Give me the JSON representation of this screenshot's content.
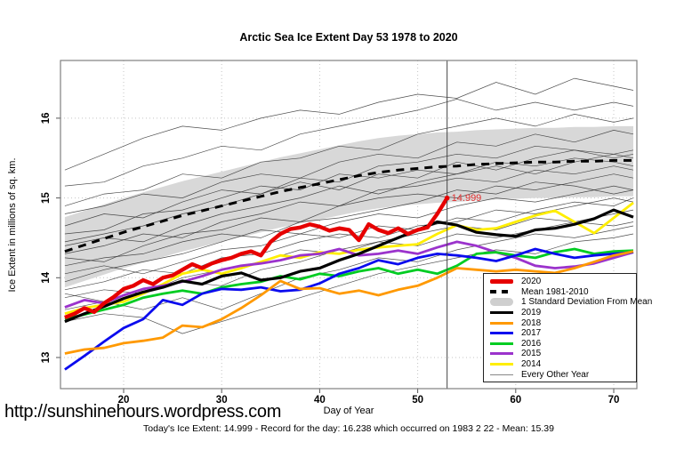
{
  "footer": {
    "url": "http://sunshinehours.wordpress.com",
    "summary": "Today's Ice Extent: 14.999  - Record for the day: 16.238 which occurred on 1983 2 22  - Mean: 15.39"
  },
  "legend": {
    "items": [
      {
        "label": "2020",
        "swatch": "thick",
        "color": "#e60000"
      },
      {
        "label": "Mean 1981-2010",
        "swatch": "dash",
        "color": "#000000"
      },
      {
        "label": "1 Standard Deviation From Mean",
        "swatch": "band",
        "color": "#cfcfcf"
      },
      {
        "label": "2019",
        "swatch": "line",
        "color": "#000000"
      },
      {
        "label": "2018",
        "swatch": "line",
        "color": "#ff9900"
      },
      {
        "label": "2017",
        "swatch": "line",
        "color": "#0b0bee"
      },
      {
        "label": "2016",
        "swatch": "line",
        "color": "#00cc22"
      },
      {
        "label": "2015",
        "swatch": "line",
        "color": "#9b33cc"
      },
      {
        "label": "2014",
        "swatch": "line",
        "color": "#ffee00"
      },
      {
        "label": "Every Other Year",
        "swatch": "thin",
        "color": "#888888"
      }
    ]
  },
  "chart_data": {
    "type": "line",
    "title": "Arctic Sea Ice Extent Day 53 1978 to 2020",
    "xlabel": "Day of Year",
    "ylabel": "Ice Extent in millions of sq. km.",
    "xlim": [
      13.5,
      72.4
    ],
    "ylim": [
      12.6,
      16.72
    ],
    "xticks": [
      20,
      30,
      40,
      50,
      60,
      70
    ],
    "yticks": [
      13,
      14,
      15,
      16
    ],
    "grid": true,
    "legend_position": "bottom-right",
    "today_line_day": 53,
    "annotation": {
      "text": "14.999",
      "day": 53,
      "value": 14.999,
      "color": "#e03030"
    },
    "band": {
      "name": "1 Standard Deviation From Mean",
      "color": "#d8d8d8",
      "day_start": 14,
      "day_step": 2,
      "upper": [
        14.76,
        14.84,
        14.92,
        15.0,
        15.07,
        15.14,
        15.21,
        15.27,
        15.33,
        15.39,
        15.45,
        15.51,
        15.56,
        15.61,
        15.66,
        15.71,
        15.75,
        15.78,
        15.8,
        15.82,
        15.83,
        15.85,
        15.86,
        15.87,
        15.88,
        15.88,
        15.89,
        15.89,
        15.9,
        15.9
      ],
      "lower": [
        13.88,
        13.96,
        14.04,
        14.12,
        14.19,
        14.26,
        14.33,
        14.39,
        14.45,
        14.51,
        14.57,
        14.63,
        14.68,
        14.73,
        14.78,
        14.83,
        14.87,
        14.9,
        14.92,
        14.94,
        14.95,
        14.97,
        14.98,
        14.99,
        15.0,
        15.0,
        15.01,
        15.01,
        15.02,
        15.02
      ]
    },
    "mean": {
      "name": "Mean 1981-2010",
      "color": "#000000",
      "day_start": 14,
      "day_step": 2,
      "values": [
        14.33,
        14.41,
        14.49,
        14.57,
        14.64,
        14.71,
        14.78,
        14.84,
        14.9,
        14.96,
        15.02,
        15.08,
        15.13,
        15.18,
        15.23,
        15.28,
        15.32,
        15.35,
        15.37,
        15.39,
        15.4,
        15.42,
        15.43,
        15.44,
        15.45,
        15.45,
        15.46,
        15.46,
        15.47,
        15.47
      ]
    },
    "series": [
      {
        "name": "2014",
        "color": "#ffee00",
        "width": 2.8,
        "day_start": 14,
        "day_step": 2,
        "values": [
          13.55,
          13.62,
          13.66,
          13.7,
          13.8,
          13.92,
          14.05,
          14.1,
          14.05,
          14.12,
          14.2,
          14.28,
          14.25,
          14.32,
          14.3,
          14.35,
          14.38,
          14.4,
          14.42,
          14.55,
          14.66,
          14.6,
          14.62,
          14.7,
          14.78,
          14.84,
          14.7,
          14.56,
          14.75,
          14.94
        ]
      },
      {
        "name": "2015",
        "color": "#9b33cc",
        "width": 2.8,
        "day_start": 14,
        "day_step": 2,
        "values": [
          13.63,
          13.72,
          13.68,
          13.78,
          13.86,
          13.9,
          13.95,
          14.02,
          14.1,
          14.15,
          14.18,
          14.22,
          14.28,
          14.3,
          14.36,
          14.28,
          14.3,
          14.34,
          14.3,
          14.38,
          14.45,
          14.4,
          14.32,
          14.25,
          14.15,
          14.12,
          14.14,
          14.18,
          14.25,
          14.32
        ]
      },
      {
        "name": "2016",
        "color": "#00cc22",
        "width": 2.8,
        "day_start": 14,
        "day_step": 2,
        "values": [
          13.48,
          13.54,
          13.6,
          13.66,
          13.75,
          13.8,
          13.84,
          13.8,
          13.88,
          13.92,
          13.95,
          14.02,
          13.98,
          14.05,
          14.02,
          14.08,
          14.12,
          14.05,
          14.1,
          14.05,
          14.15,
          14.3,
          14.32,
          14.28,
          14.25,
          14.32,
          14.36,
          14.3,
          14.33,
          14.34
        ]
      },
      {
        "name": "2017",
        "color": "#0b0bee",
        "width": 2.8,
        "day_start": 14,
        "day_step": 2,
        "values": [
          12.85,
          13.02,
          13.2,
          13.37,
          13.48,
          13.72,
          13.66,
          13.8,
          13.86,
          13.85,
          13.88,
          13.83,
          13.85,
          13.93,
          14.05,
          14.12,
          14.22,
          14.17,
          14.25,
          14.3,
          14.28,
          14.25,
          14.21,
          14.28,
          14.36,
          14.3,
          14.25,
          14.28,
          14.3,
          14.32
        ]
      },
      {
        "name": "2018",
        "color": "#ff9900",
        "width": 2.8,
        "day_start": 14,
        "day_step": 2,
        "values": [
          13.05,
          13.1,
          13.12,
          13.18,
          13.21,
          13.25,
          13.4,
          13.38,
          13.48,
          13.62,
          13.78,
          13.96,
          13.86,
          13.87,
          13.8,
          13.84,
          13.78,
          13.85,
          13.9,
          14.0,
          14.12,
          14.1,
          14.08,
          14.1,
          14.08,
          14.06,
          14.12,
          14.2,
          14.28,
          14.33
        ]
      },
      {
        "name": "2019",
        "color": "#000000",
        "width": 3.2,
        "day_start": 14,
        "day_step": 2,
        "values": [
          13.45,
          13.55,
          13.64,
          13.74,
          13.82,
          13.88,
          13.96,
          13.92,
          14.02,
          14.06,
          13.97,
          14.0,
          14.08,
          14.12,
          14.22,
          14.3,
          14.4,
          14.5,
          14.6,
          14.7,
          14.66,
          14.57,
          14.54,
          14.52,
          14.6,
          14.62,
          14.67,
          14.74,
          14.85,
          14.76
        ]
      },
      {
        "name": "2020",
        "color": "#e60000",
        "width": 4.4,
        "day_start": 14,
        "day_step": 1,
        "endpoint_dot": true,
        "values": [
          13.5,
          13.55,
          13.62,
          13.57,
          13.68,
          13.76,
          13.86,
          13.9,
          13.97,
          13.92,
          14.0,
          14.03,
          14.1,
          14.17,
          14.12,
          14.18,
          14.22,
          14.25,
          14.3,
          14.33,
          14.28,
          14.45,
          14.55,
          14.61,
          14.63,
          14.67,
          14.64,
          14.59,
          14.62,
          14.6,
          14.47,
          14.67,
          14.6,
          14.56,
          14.62,
          14.55,
          14.6,
          14.63,
          14.8,
          14.999
        ]
      }
    ],
    "other_years": {
      "name": "Every Other Year",
      "color": "#2f2f2f",
      "width": 0.7,
      "days": [
        14,
        18,
        22,
        26,
        30,
        34,
        38,
        42,
        46,
        50,
        54,
        58,
        62,
        66,
        70,
        72
      ],
      "lines": [
        [
          15.35,
          15.55,
          15.75,
          15.9,
          15.85,
          16.0,
          16.1,
          16.05,
          16.2,
          16.3,
          16.25,
          16.45,
          16.3,
          16.5,
          16.4,
          16.35
        ],
        [
          15.15,
          15.2,
          15.4,
          15.5,
          15.65,
          15.6,
          15.8,
          15.9,
          16.0,
          16.1,
          16.24,
          16.1,
          16.2,
          16.1,
          16.2,
          16.15
        ],
        [
          14.9,
          15.05,
          15.1,
          15.3,
          15.25,
          15.45,
          15.5,
          15.65,
          15.6,
          15.8,
          15.9,
          16.0,
          15.9,
          16.05,
          15.95,
          16.0
        ],
        [
          14.8,
          14.9,
          15.05,
          15.0,
          15.2,
          15.3,
          15.25,
          15.45,
          15.55,
          15.5,
          15.7,
          15.65,
          15.8,
          15.7,
          15.85,
          15.8
        ],
        [
          14.65,
          14.8,
          14.75,
          14.95,
          15.1,
          15.05,
          15.25,
          15.2,
          15.4,
          15.45,
          15.55,
          15.5,
          15.65,
          15.6,
          15.5,
          15.55
        ],
        [
          14.55,
          14.6,
          14.8,
          14.85,
          15.0,
          15.15,
          15.1,
          15.3,
          15.25,
          15.35,
          15.3,
          15.45,
          15.4,
          15.5,
          15.45,
          15.4
        ],
        [
          14.45,
          14.55,
          14.65,
          14.8,
          14.9,
          15.05,
          15.2,
          15.1,
          15.3,
          15.25,
          15.45,
          15.35,
          15.5,
          15.6,
          15.55,
          15.6
        ],
        [
          14.4,
          14.5,
          14.45,
          14.65,
          14.8,
          14.9,
          15.0,
          15.15,
          15.05,
          15.2,
          15.3,
          15.4,
          15.3,
          15.45,
          15.55,
          15.5
        ],
        [
          14.3,
          14.4,
          14.55,
          14.5,
          14.7,
          14.8,
          14.95,
          14.9,
          15.1,
          15.15,
          15.25,
          15.2,
          15.35,
          15.3,
          15.4,
          15.35
        ],
        [
          14.25,
          14.2,
          14.4,
          14.55,
          14.6,
          14.75,
          14.7,
          14.9,
          15.0,
          15.05,
          15.0,
          15.15,
          15.1,
          15.2,
          15.3,
          15.25
        ],
        [
          14.15,
          14.25,
          14.3,
          14.45,
          14.55,
          14.5,
          14.7,
          14.75,
          14.85,
          14.95,
          15.1,
          15.05,
          15.2,
          15.15,
          15.05,
          15.1
        ],
        [
          13.95,
          14.1,
          14.2,
          14.3,
          14.45,
          14.6,
          14.55,
          14.7,
          14.8,
          14.75,
          14.9,
          15.0,
          14.95,
          15.05,
          15.15,
          15.1
        ],
        [
          13.85,
          13.95,
          14.1,
          14.05,
          14.25,
          14.3,
          14.45,
          14.55,
          14.5,
          14.65,
          14.7,
          14.85,
          14.8,
          14.9,
          15.0,
          14.95
        ],
        [
          13.75,
          13.85,
          13.8,
          14.0,
          14.1,
          14.2,
          14.35,
          14.3,
          14.45,
          14.55,
          14.65,
          14.6,
          14.75,
          14.7,
          14.8,
          14.85
        ],
        [
          13.6,
          13.7,
          13.85,
          13.95,
          13.9,
          14.1,
          14.2,
          14.35,
          14.45,
          14.4,
          14.55,
          14.5,
          14.6,
          14.7,
          14.65,
          14.7
        ],
        [
          13.45,
          13.55,
          13.5,
          13.3,
          13.45,
          13.6,
          13.75,
          13.9,
          14.05,
          14.15,
          14.25,
          14.35,
          14.3,
          14.45,
          14.5,
          14.55
        ],
        [
          13.8,
          13.7,
          13.6,
          13.75,
          13.6,
          13.8,
          14.0,
          14.1,
          14.25,
          14.2,
          14.35,
          14.45,
          14.55,
          14.5,
          14.6,
          14.65
        ],
        [
          14.05,
          14.15,
          14.05,
          14.2,
          14.35,
          14.4,
          14.55,
          14.5,
          14.65,
          14.6,
          14.75,
          14.7,
          14.85,
          14.95,
          14.9,
          15.0
        ]
      ]
    }
  }
}
